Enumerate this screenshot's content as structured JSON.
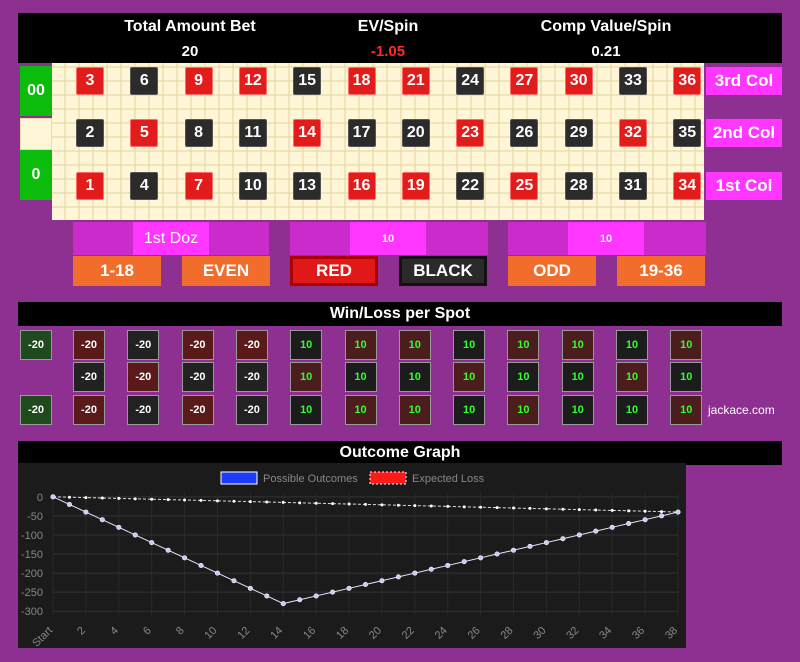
{
  "header": {
    "total_bet_label": "Total Amount Bet",
    "total_bet_value": "20",
    "ev_label": "EV/Spin",
    "ev_value": "-1.05",
    "comp_label": "Comp Value/Spin",
    "comp_value": "0.21",
    "ev_color": "#ff2a2a"
  },
  "zeros": {
    "double": "00",
    "single": "0"
  },
  "columns": [
    "3rd Col",
    "2nd Col",
    "1st Col"
  ],
  "dozens": {
    "first": "1st Doz",
    "second_bet": "10",
    "third_bet": "10"
  },
  "outside": {
    "low": "1-18",
    "even": "EVEN",
    "red": "RED",
    "black": "BLACK",
    "odd": "ODD",
    "high": "19-36"
  },
  "rows": [
    [
      {
        "n": "3",
        "c": "red"
      },
      {
        "n": "6",
        "c": "black"
      },
      {
        "n": "9",
        "c": "red"
      },
      {
        "n": "12",
        "c": "red"
      },
      {
        "n": "15",
        "c": "black"
      },
      {
        "n": "18",
        "c": "red"
      },
      {
        "n": "21",
        "c": "red"
      },
      {
        "n": "24",
        "c": "black"
      },
      {
        "n": "27",
        "c": "red"
      },
      {
        "n": "30",
        "c": "red"
      },
      {
        "n": "33",
        "c": "black"
      },
      {
        "n": "36",
        "c": "red"
      }
    ],
    [
      {
        "n": "2",
        "c": "black"
      },
      {
        "n": "5",
        "c": "red"
      },
      {
        "n": "8",
        "c": "black"
      },
      {
        "n": "11",
        "c": "black"
      },
      {
        "n": "14",
        "c": "red"
      },
      {
        "n": "17",
        "c": "black"
      },
      {
        "n": "20",
        "c": "black"
      },
      {
        "n": "23",
        "c": "red"
      },
      {
        "n": "26",
        "c": "black"
      },
      {
        "n": "29",
        "c": "black"
      },
      {
        "n": "32",
        "c": "red"
      },
      {
        "n": "35",
        "c": "black"
      }
    ],
    [
      {
        "n": "1",
        "c": "red"
      },
      {
        "n": "4",
        "c": "black"
      },
      {
        "n": "7",
        "c": "red"
      },
      {
        "n": "10",
        "c": "black"
      },
      {
        "n": "13",
        "c": "black"
      },
      {
        "n": "16",
        "c": "red"
      },
      {
        "n": "19",
        "c": "red"
      },
      {
        "n": "22",
        "c": "black"
      },
      {
        "n": "25",
        "c": "red"
      },
      {
        "n": "28",
        "c": "black"
      },
      {
        "n": "31",
        "c": "black"
      },
      {
        "n": "34",
        "c": "red"
      }
    ]
  ],
  "winloss": {
    "title": "Win/Loss per Spot",
    "zero_values": [
      "-20",
      "-20"
    ],
    "rows": [
      [
        "-20",
        "-20",
        "-20",
        "-20",
        "10",
        "10",
        "10",
        "10",
        "10",
        "10",
        "10",
        "10"
      ],
      [
        "-20",
        "-20",
        "-20",
        "-20",
        "10",
        "10",
        "10",
        "10",
        "10",
        "10",
        "10",
        "10"
      ],
      [
        "-20",
        "-20",
        "-20",
        "-20",
        "10",
        "10",
        "10",
        "10",
        "10",
        "10",
        "10",
        "10"
      ]
    ],
    "watermark": "jackace.com"
  },
  "chart_data": {
    "type": "line",
    "title": "Outcome Graph",
    "legend": [
      "Possible Outcomes",
      "Expected Loss"
    ],
    "legend_colors": [
      "#1e3cff",
      "#ff1a1a"
    ],
    "x_ticks": [
      "Start",
      "2",
      "4",
      "6",
      "8",
      "10",
      "12",
      "14",
      "16",
      "18",
      "20",
      "22",
      "24",
      "26",
      "28",
      "30",
      "32",
      "34",
      "36",
      "38"
    ],
    "y_ticks": [
      "0",
      "-50",
      "-100",
      "-150",
      "-200",
      "-250",
      "-300"
    ],
    "ylim": [
      -310,
      10
    ],
    "x": [
      0,
      1,
      2,
      3,
      4,
      5,
      6,
      7,
      8,
      9,
      10,
      11,
      12,
      13,
      14,
      15,
      16,
      17,
      18,
      19,
      20,
      21,
      22,
      23,
      24,
      25,
      26,
      27,
      28,
      29,
      30,
      31,
      32,
      33,
      34,
      35,
      36,
      37,
      38
    ],
    "series": [
      {
        "name": "Possible Outcomes",
        "values": [
          0,
          -20,
          -40,
          -60,
          -80,
          -100,
          -120,
          -140,
          -160,
          -180,
          -200,
          -220,
          -240,
          -260,
          -280,
          -270,
          -260,
          -250,
          -240,
          -230,
          -220,
          -210,
          -200,
          -190,
          -180,
          -170,
          -160,
          -150,
          -140,
          -130,
          -120,
          -110,
          -100,
          -90,
          -80,
          -70,
          -60,
          -50,
          -40
        ]
      },
      {
        "name": "Expected Loss",
        "values": [
          0,
          -1.05,
          -2.1,
          -3.15,
          -4.2,
          -5.25,
          -6.3,
          -7.35,
          -8.4,
          -9.45,
          -10.5,
          -11.55,
          -12.6,
          -13.65,
          -14.7,
          -15.75,
          -16.8,
          -17.85,
          -18.9,
          -19.95,
          -21,
          -22.05,
          -23.1,
          -24.15,
          -25.2,
          -26.25,
          -27.3,
          -28.35,
          -29.4,
          -30.45,
          -31.5,
          -32.55,
          -33.6,
          -34.65,
          -35.7,
          -36.75,
          -37.8,
          -38.85,
          -39.9
        ]
      }
    ]
  }
}
